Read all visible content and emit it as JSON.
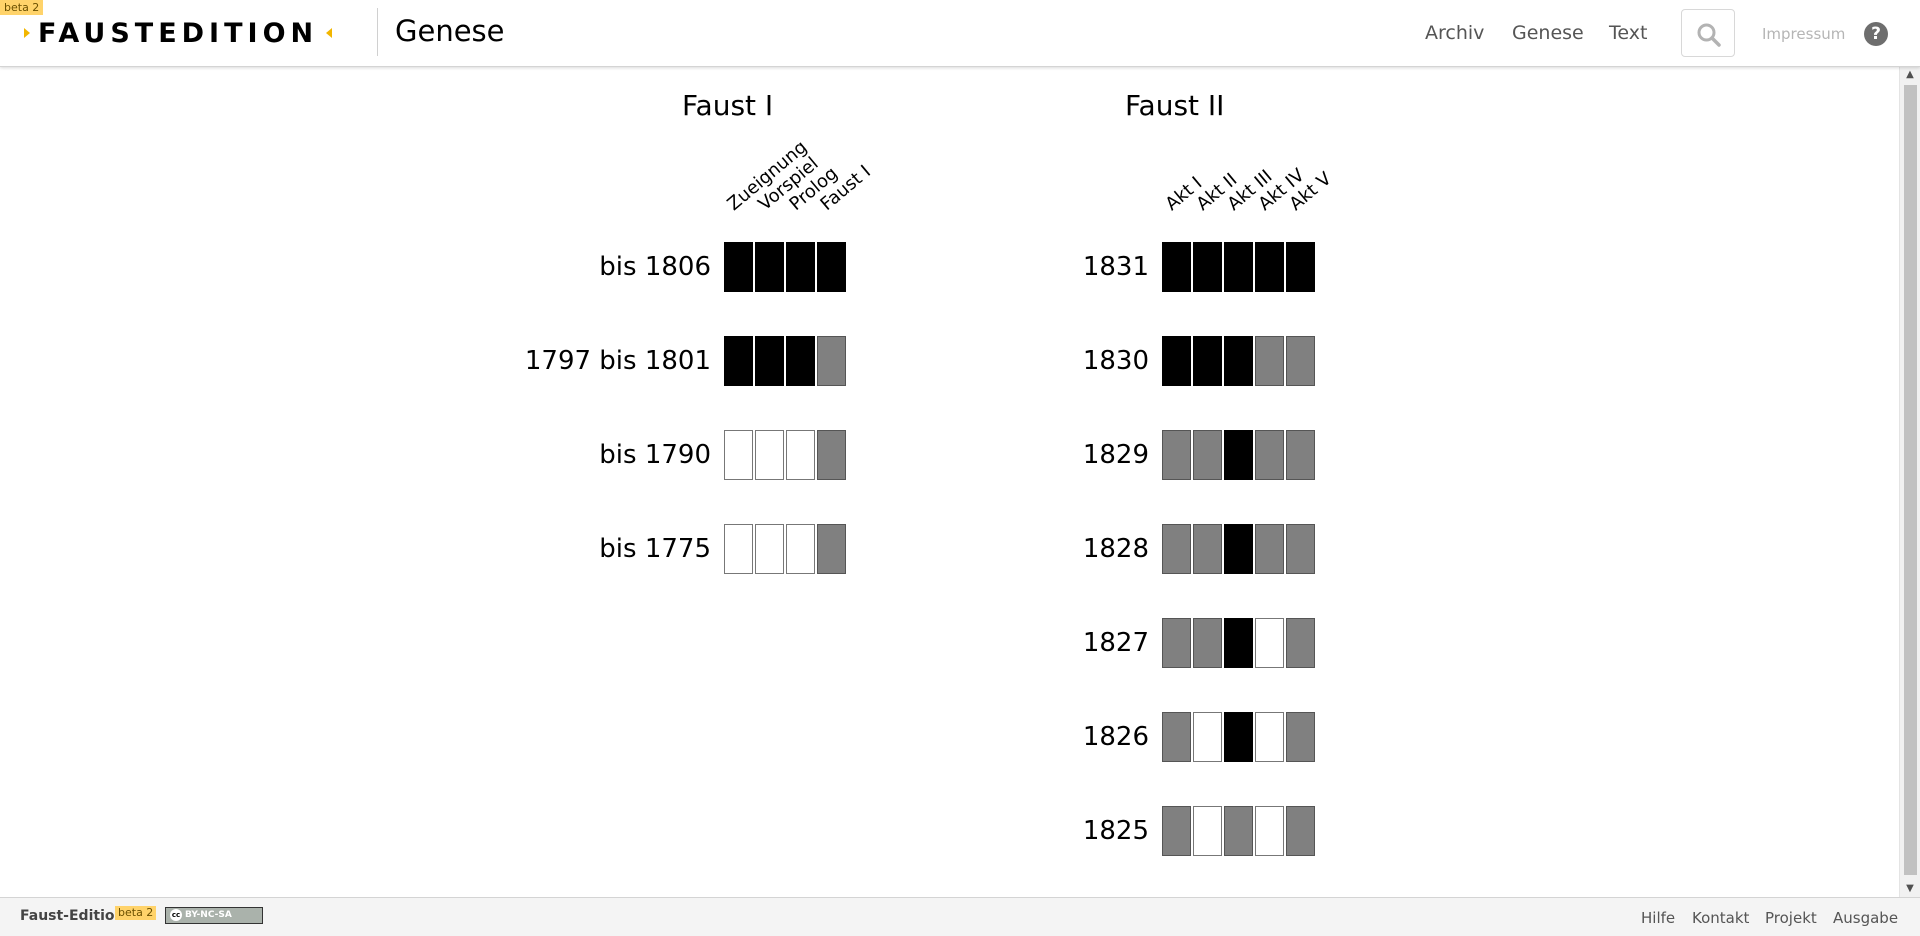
{
  "header": {
    "beta_label": "beta 2",
    "logo_text": "FAUSTEDITION",
    "title": "Genese",
    "nav": {
      "archiv": "Archiv",
      "genese": "Genese",
      "text": "Text"
    },
    "impressum": "Impressum",
    "help": "?"
  },
  "faust1": {
    "title": "Faust I",
    "columns": [
      "Zueignung",
      "Vorspiel",
      "Prolog",
      "Faust I"
    ],
    "rows": [
      {
        "label": "bis 1806",
        "cells": [
          "b",
          "b",
          "b",
          "b"
        ]
      },
      {
        "label": "1797 bis 1801",
        "cells": [
          "b",
          "b",
          "b",
          "g"
        ]
      },
      {
        "label": "bis 1790",
        "cells": [
          "w",
          "w",
          "w",
          "g"
        ]
      },
      {
        "label": "bis 1775",
        "cells": [
          "w",
          "w",
          "w",
          "g"
        ]
      }
    ]
  },
  "faust2": {
    "title": "Faust II",
    "columns": [
      "Akt I",
      "Akt II",
      "Akt III",
      "Akt IV",
      "Akt V"
    ],
    "rows": [
      {
        "label": "1831",
        "cells": [
          "b",
          "b",
          "b",
          "b",
          "b"
        ]
      },
      {
        "label": "1830",
        "cells": [
          "b",
          "b",
          "b",
          "g",
          "g"
        ]
      },
      {
        "label": "1829",
        "cells": [
          "g",
          "g",
          "b",
          "g",
          "g"
        ]
      },
      {
        "label": "1828",
        "cells": [
          "g",
          "g",
          "b",
          "g",
          "g"
        ]
      },
      {
        "label": "1827",
        "cells": [
          "g",
          "g",
          "b",
          "w",
          "g"
        ]
      },
      {
        "label": "1826",
        "cells": [
          "g",
          "w",
          "b",
          "w",
          "g"
        ]
      },
      {
        "label": "1825",
        "cells": [
          "g",
          "w",
          "g",
          "w",
          "g"
        ]
      }
    ]
  },
  "cell_colors": {
    "b": "#000000",
    "g": "#808080",
    "w": "#ffffff"
  },
  "footer": {
    "brand": "Faust-Edition",
    "beta_label": "beta 2",
    "license": "BY-NC-SA",
    "links": {
      "hilfe": "Hilfe",
      "kontakt": "Kontakt",
      "projekt": "Projekt",
      "ausgabe": "Ausgabe"
    }
  }
}
